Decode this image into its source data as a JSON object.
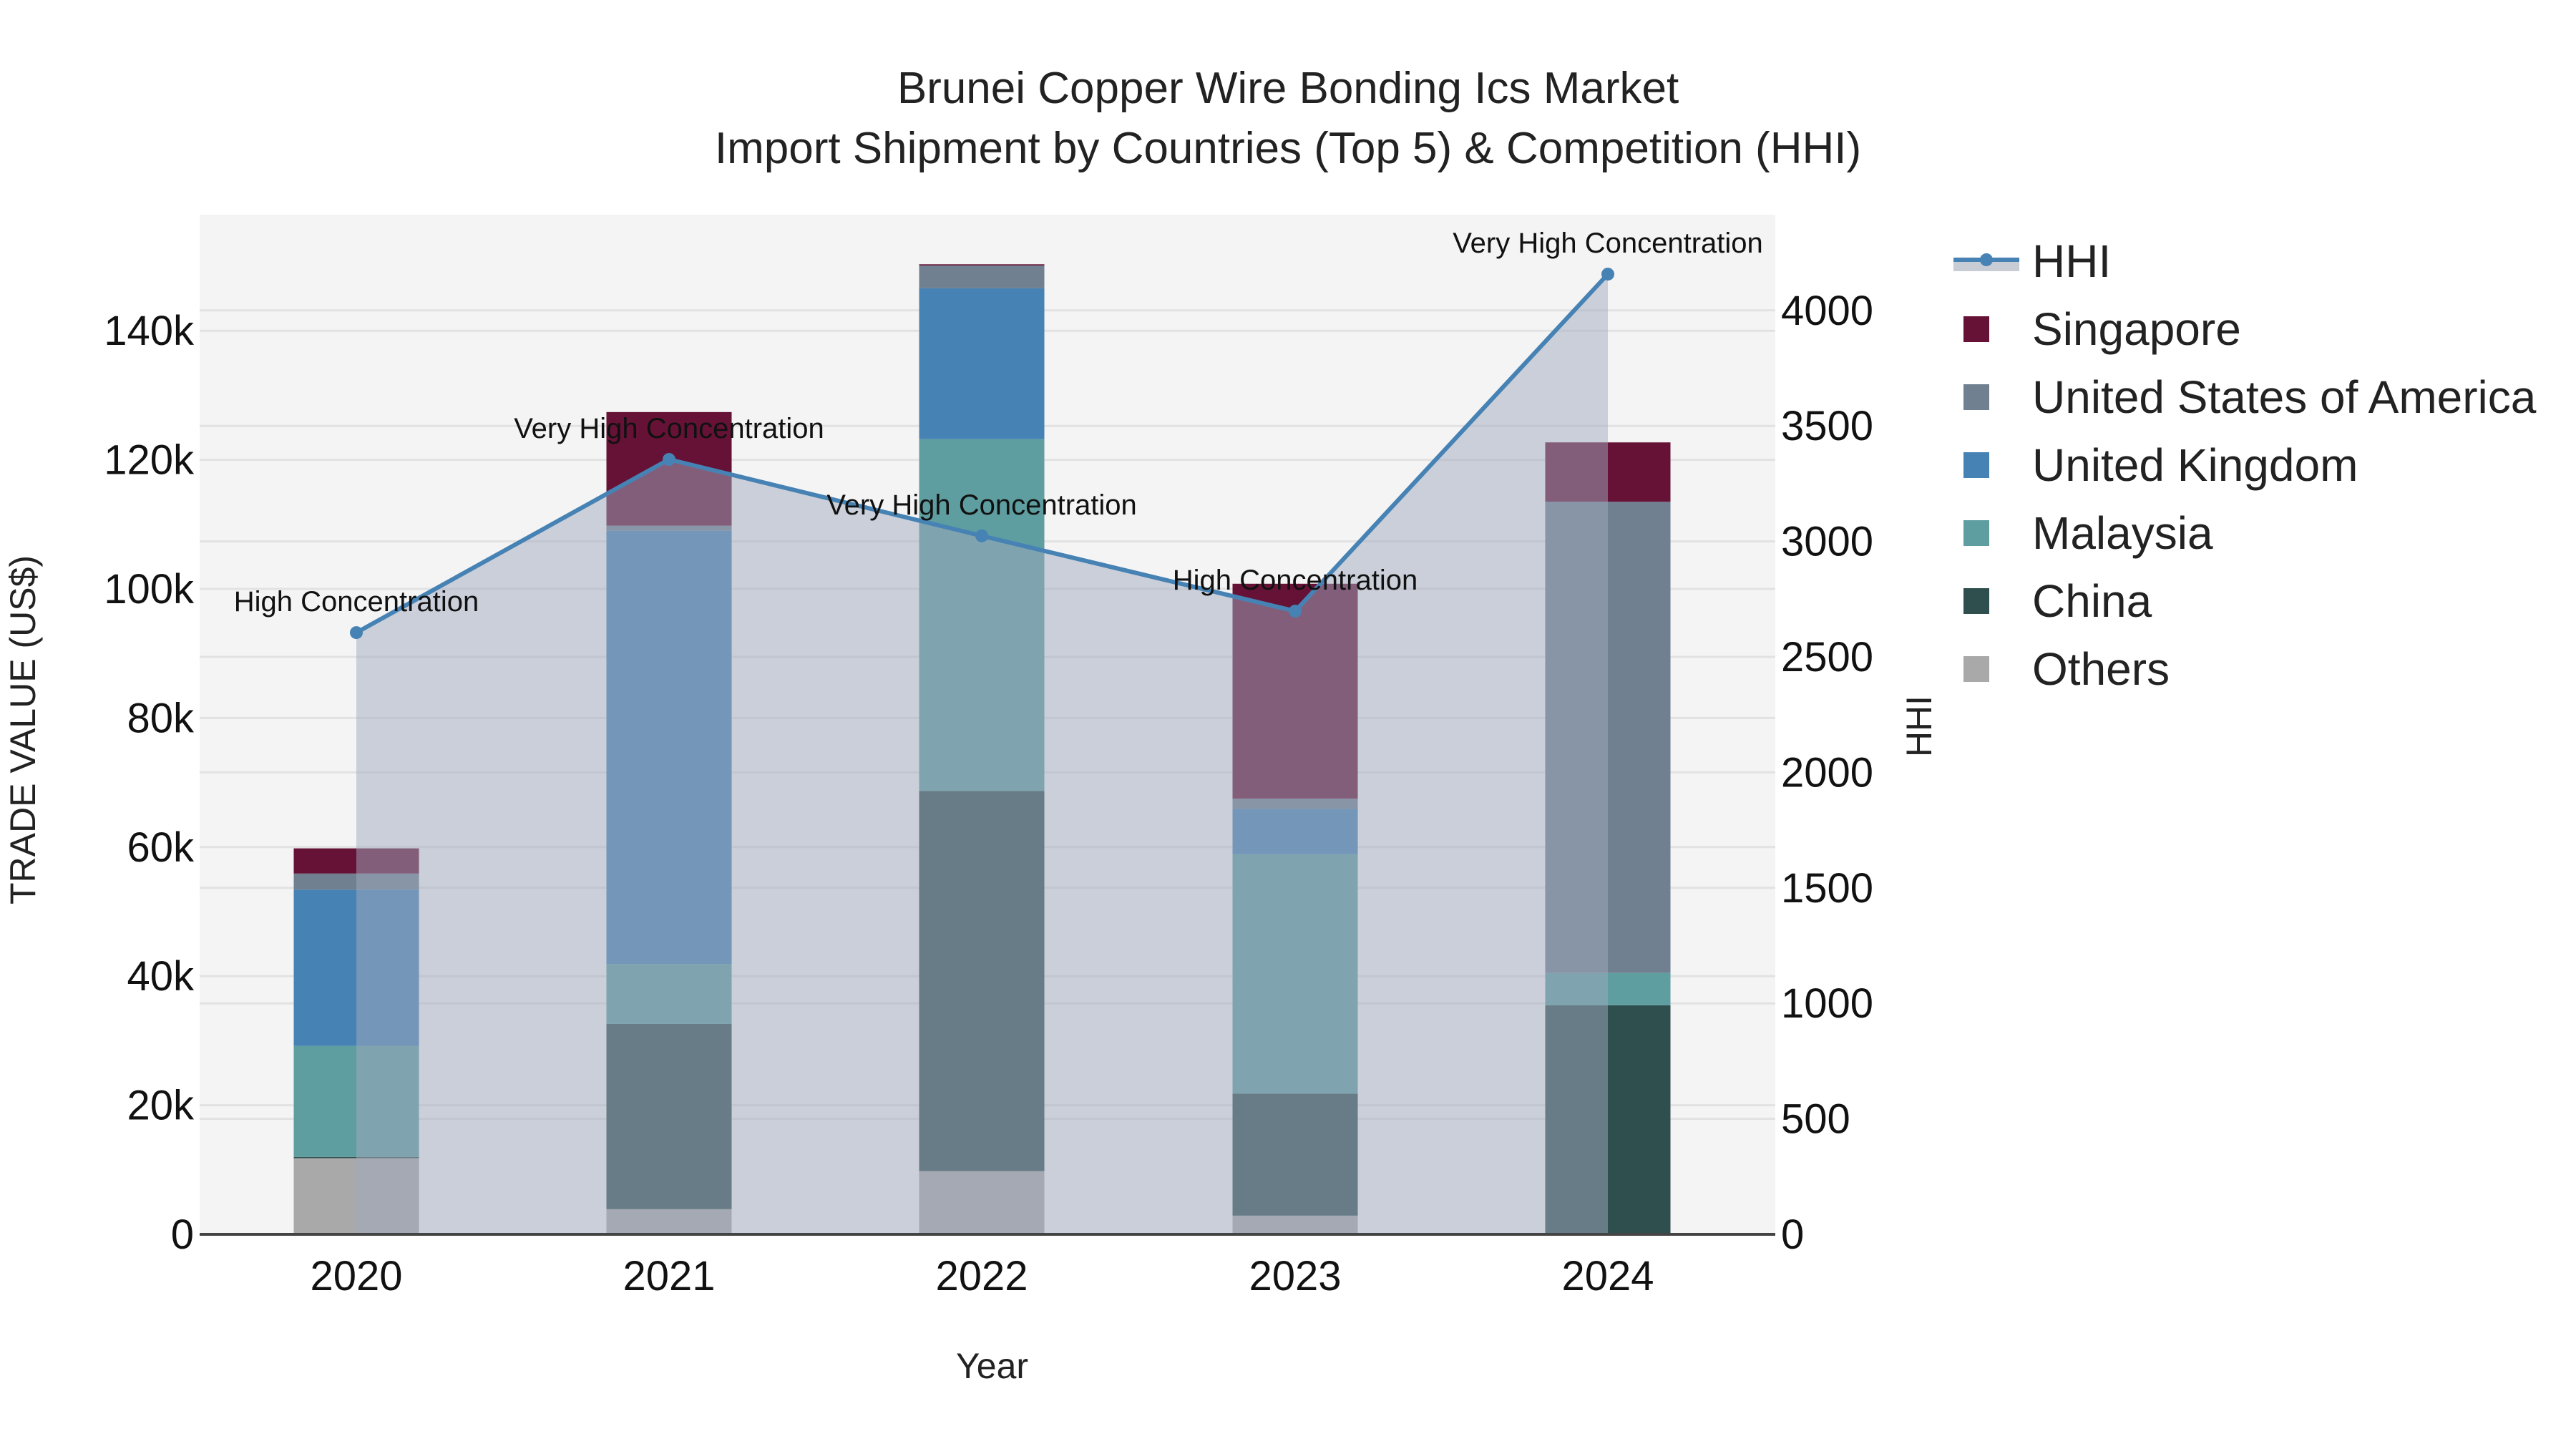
{
  "title": {
    "line1": "Brunei Copper Wire Bonding Ics Market",
    "line2": "Import Shipment by Countries (Top 5) & Competition (HHI)"
  },
  "axes": {
    "x_title": "Year",
    "y_left_title": "TRADE VALUE (US$)",
    "y_right_title": "HHI",
    "y_left_ticks": [
      "0",
      "20k",
      "40k",
      "60k",
      "80k",
      "100k",
      "120k",
      "140k"
    ],
    "y_right_ticks": [
      "0",
      "500",
      "1000",
      "1500",
      "2000",
      "2500",
      "3000",
      "3500",
      "4000"
    ]
  },
  "legend": {
    "items": [
      {
        "label": "HHI",
        "type": "line",
        "color": "#4682b4"
      },
      {
        "label": "Singapore",
        "type": "bar",
        "color": "#661236"
      },
      {
        "label": "United States of America",
        "type": "bar",
        "color": "#708090"
      },
      {
        "label": "United Kingdom",
        "type": "bar",
        "color": "#4682b4"
      },
      {
        "label": "Malaysia",
        "type": "bar",
        "color": "#5f9ea0"
      },
      {
        "label": "China",
        "type": "bar",
        "color": "#2f4f4f"
      },
      {
        "label": "Others",
        "type": "bar",
        "color": "#a9a9a9"
      }
    ]
  },
  "chart_data": {
    "type": "bar",
    "stacked": true,
    "title": "Brunei Copper Wire Bonding Ics Market — Import Shipment by Countries (Top 5) & Competition (HHI)",
    "xlabel": "Year",
    "ylabel": "TRADE VALUE (US$)",
    "y2label": "HHI",
    "categories": [
      "2020",
      "2021",
      "2022",
      "2023",
      "2024"
    ],
    "ylim": [
      0,
      158000
    ],
    "y2lim": [
      0,
      4420
    ],
    "grid": true,
    "legend_position": "right",
    "series": [
      {
        "name": "Others",
        "color": "#a9a9a9",
        "values": [
          11800,
          3900,
          9800,
          2900,
          0
        ]
      },
      {
        "name": "China",
        "color": "#2f4f4f",
        "values": [
          200,
          28700,
          58900,
          18900,
          35500
        ]
      },
      {
        "name": "Malaysia",
        "color": "#5f9ea0",
        "values": [
          17200,
          9300,
          54500,
          37100,
          5000
        ]
      },
      {
        "name": "United Kingdom",
        "color": "#4682b4",
        "values": [
          24200,
          67100,
          23400,
          7000,
          0
        ]
      },
      {
        "name": "United States of America",
        "color": "#708090",
        "values": [
          2500,
          800,
          3500,
          1600,
          73000
        ]
      },
      {
        "name": "Singapore",
        "color": "#661236",
        "values": [
          3900,
          17600,
          200,
          33300,
          9200
        ]
      }
    ],
    "line_series": {
      "name": "HHI",
      "axis": "right",
      "color": "#4682b4",
      "fill": "tozeroy",
      "values": [
        2605,
        3355,
        3024,
        2698,
        4157
      ],
      "annotations": [
        "High Concentration",
        "Very High Concentration",
        "Very High Concentration",
        "High Concentration",
        "Very High Concentration"
      ]
    }
  }
}
